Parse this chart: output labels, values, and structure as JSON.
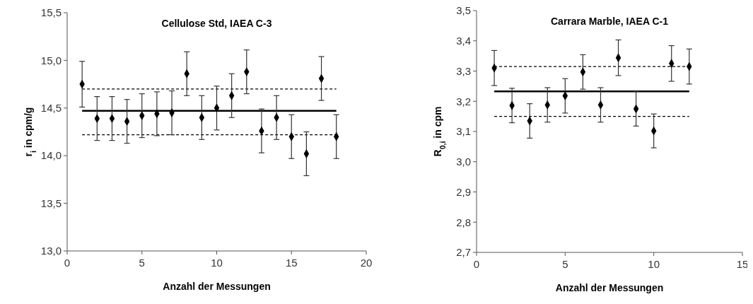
{
  "chart_data": [
    {
      "type": "scatter",
      "title": "Cellulose Std, IAEA C-3",
      "xlabel": "Anzahl der Messungen",
      "ylabel": "r$_{i}$ in cpm/g",
      "xlim": [
        0,
        20
      ],
      "xticks": [
        0,
        5,
        10,
        15,
        20
      ],
      "ylim": [
        13.0,
        15.5
      ],
      "yticks": [
        {
          "value": 13.0,
          "label": "13,0"
        },
        {
          "value": 13.5,
          "label": "13,5"
        },
        {
          "value": 14.0,
          "label": "14,0"
        },
        {
          "value": 14.5,
          "label": "14,5"
        },
        {
          "value": 15.0,
          "label": "15,0"
        },
        {
          "value": 15.5,
          "label": "15,5"
        }
      ],
      "grid": false,
      "marker": "diamond",
      "series": [
        {
          "color": "#000000",
          "x": [
            1,
            2,
            3,
            4,
            5,
            6,
            7,
            8,
            9,
            10,
            11,
            12,
            13,
            14,
            15,
            16,
            17,
            18
          ],
          "values": [
            14.75,
            14.39,
            14.39,
            14.36,
            14.42,
            14.44,
            14.45,
            14.86,
            14.4,
            14.5,
            14.63,
            14.88,
            14.26,
            14.4,
            14.2,
            14.02,
            14.81,
            14.2
          ],
          "errors": [
            0.24,
            0.23,
            0.23,
            0.23,
            0.23,
            0.23,
            0.23,
            0.23,
            0.23,
            0.23,
            0.23,
            0.23,
            0.23,
            0.23,
            0.23,
            0.23,
            0.23,
            0.23
          ]
        },
        {
          "type": "line",
          "color": "#000000",
          "line_style": "solid",
          "marker": "none",
          "x": [
            1,
            18
          ],
          "values": [
            14.47,
            14.47
          ]
        },
        {
          "type": "line",
          "color": "#000000",
          "line_style": "dashed",
          "marker": "none",
          "x": [
            1,
            18
          ],
          "values": [
            14.7,
            14.7
          ]
        },
        {
          "type": "line",
          "color": "#000000",
          "line_style": "dashed",
          "marker": "none",
          "x": [
            1,
            18
          ],
          "values": [
            14.22,
            14.22
          ]
        }
      ]
    },
    {
      "type": "scatter",
      "title": "Carrara Marble, IAEA C-1",
      "xlabel": "Anzahl der Messungen",
      "ylabel": "R$_{0,i}$ in cpm",
      "xlim": [
        0,
        15
      ],
      "xticks": [
        0,
        5,
        10,
        15
      ],
      "ylim": [
        2.7,
        3.5
      ],
      "yticks": [
        {
          "value": 2.7,
          "label": "2,7"
        },
        {
          "value": 2.8,
          "label": "2,8"
        },
        {
          "value": 2.9,
          "label": "2,9"
        },
        {
          "value": 3.0,
          "label": "3,0"
        },
        {
          "value": 3.1,
          "label": "3,1"
        },
        {
          "value": 3.2,
          "label": "3,2"
        },
        {
          "value": 3.3,
          "label": "3,3"
        },
        {
          "value": 3.4,
          "label": "3,4"
        },
        {
          "value": 3.5,
          "label": "3,5"
        }
      ],
      "grid": false,
      "marker": "diamond",
      "series": [
        {
          "color": "#000000",
          "x": [
            1,
            2,
            3,
            4,
            5,
            6,
            7,
            8,
            9,
            10,
            11,
            12
          ],
          "values": [
            3.31,
            3.186,
            3.135,
            3.188,
            3.218,
            3.297,
            3.188,
            3.344,
            3.175,
            3.102,
            3.325,
            3.315
          ],
          "errors": [
            0.058,
            0.057,
            0.057,
            0.057,
            0.057,
            0.057,
            0.057,
            0.059,
            0.057,
            0.056,
            0.059,
            0.058
          ]
        },
        {
          "type": "line",
          "color": "#000000",
          "line_style": "solid",
          "marker": "none",
          "x": [
            1,
            12
          ],
          "values": [
            3.233,
            3.233
          ]
        },
        {
          "type": "line",
          "color": "#000000",
          "line_style": "dashed",
          "marker": "none",
          "x": [
            1,
            12
          ],
          "values": [
            3.315,
            3.315
          ]
        },
        {
          "type": "line",
          "color": "#000000",
          "line_style": "dashed",
          "marker": "none",
          "x": [
            1,
            12
          ],
          "values": [
            3.15,
            3.15
          ]
        }
      ]
    }
  ]
}
